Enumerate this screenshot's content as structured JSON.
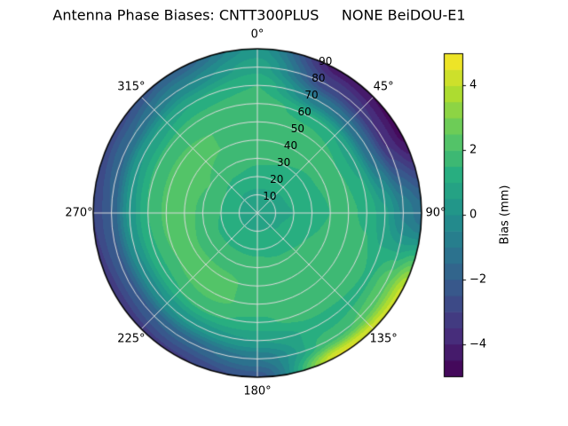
{
  "title": "Antenna Phase Biases: CNTT300PLUS     NONE BeiDOU-E1",
  "chart_data": {
    "type": "heatmap",
    "subtype": "polar-filled-contour",
    "theta_zero": "top",
    "theta_direction": "clockwise",
    "r_max": 90,
    "theta_ticks": [
      {
        "angle_deg": 0,
        "label": "0°"
      },
      {
        "angle_deg": 45,
        "label": "45°"
      },
      {
        "angle_deg": 90,
        "label": "90°"
      },
      {
        "angle_deg": 135,
        "label": "135°"
      },
      {
        "angle_deg": 180,
        "label": "180°"
      },
      {
        "angle_deg": 225,
        "label": "225°"
      },
      {
        "angle_deg": 270,
        "label": "270°"
      },
      {
        "angle_deg": 315,
        "label": "315°"
      }
    ],
    "r_ticks": [
      {
        "value": 10,
        "label": "10"
      },
      {
        "value": 20,
        "label": "20"
      },
      {
        "value": 30,
        "label": "30"
      },
      {
        "value": 40,
        "label": "40"
      },
      {
        "value": 50,
        "label": "50"
      },
      {
        "value": 60,
        "label": "60"
      },
      {
        "value": 70,
        "label": "70"
      },
      {
        "value": 80,
        "label": "80"
      },
      {
        "value": 90,
        "label": "90"
      }
    ],
    "levels_mm": {
      "min": -5,
      "max": 5,
      "step": 0.5
    },
    "azimuth_deg": [
      0,
      30,
      60,
      90,
      120,
      150,
      180,
      210,
      240,
      270,
      300,
      330
    ],
    "zenith_deg": [
      0,
      10,
      20,
      30,
      40,
      50,
      60,
      70,
      80,
      90
    ],
    "bias_mm": [
      [
        0.6,
        0.9,
        1.3,
        1.6,
        1.8,
        1.9,
        1.8,
        1.5,
        0.8,
        0.2
      ],
      [
        0.6,
        0.9,
        1.2,
        1.5,
        1.7,
        1.8,
        1.2,
        -1.0,
        -3.0,
        -4.3
      ],
      [
        0.6,
        0.8,
        1.1,
        1.4,
        1.6,
        1.5,
        0.8,
        -1.5,
        -3.6,
        -4.7
      ],
      [
        0.6,
        0.8,
        1.0,
        1.2,
        1.5,
        1.6,
        1.4,
        0.6,
        -0.6,
        -1.3
      ],
      [
        0.6,
        0.9,
        1.2,
        1.5,
        1.8,
        2.0,
        1.8,
        1.4,
        2.4,
        4.2
      ],
      [
        0.6,
        1.0,
        1.3,
        1.6,
        1.9,
        2.0,
        1.8,
        1.2,
        1.8,
        4.6
      ],
      [
        0.6,
        1.0,
        1.4,
        1.7,
        1.9,
        1.8,
        1.4,
        0.5,
        -1.0,
        -2.3
      ],
      [
        0.6,
        1.0,
        1.4,
        1.8,
        2.1,
        2.2,
        1.6,
        0.2,
        -1.8,
        -3.1
      ],
      [
        0.6,
        1.0,
        1.4,
        1.8,
        2.1,
        2.0,
        1.4,
        -0.2,
        -2.2,
        -3.3
      ],
      [
        0.6,
        1.0,
        1.5,
        1.9,
        2.2,
        2.1,
        1.5,
        0.2,
        -2.0,
        -3.0
      ],
      [
        0.6,
        1.0,
        1.5,
        2.0,
        2.2,
        2.1,
        1.6,
        0.5,
        -1.5,
        -2.7
      ],
      [
        0.6,
        0.9,
        1.4,
        1.8,
        2.0,
        2.0,
        1.7,
        1.0,
        -0.5,
        -1.9
      ]
    ],
    "colorbar": {
      "label": "Bias (mm)",
      "range": [
        -5,
        5
      ],
      "ticks": [
        {
          "value": 4,
          "label": "4"
        },
        {
          "value": 2,
          "label": "2"
        },
        {
          "value": 0,
          "label": "0"
        },
        {
          "value": -2,
          "label": "−2"
        },
        {
          "value": -4,
          "label": "−4"
        }
      ]
    },
    "colors": {
      "colormap_name": "viridis",
      "viridis_stops": [
        "#440154",
        "#472d7b",
        "#3b528b",
        "#2c728e",
        "#21918c",
        "#28ae80",
        "#5ec962",
        "#addc30",
        "#fde725"
      ],
      "grid_line": "#dcdcdc",
      "spine": "#000000",
      "background": "#ffffff"
    }
  }
}
